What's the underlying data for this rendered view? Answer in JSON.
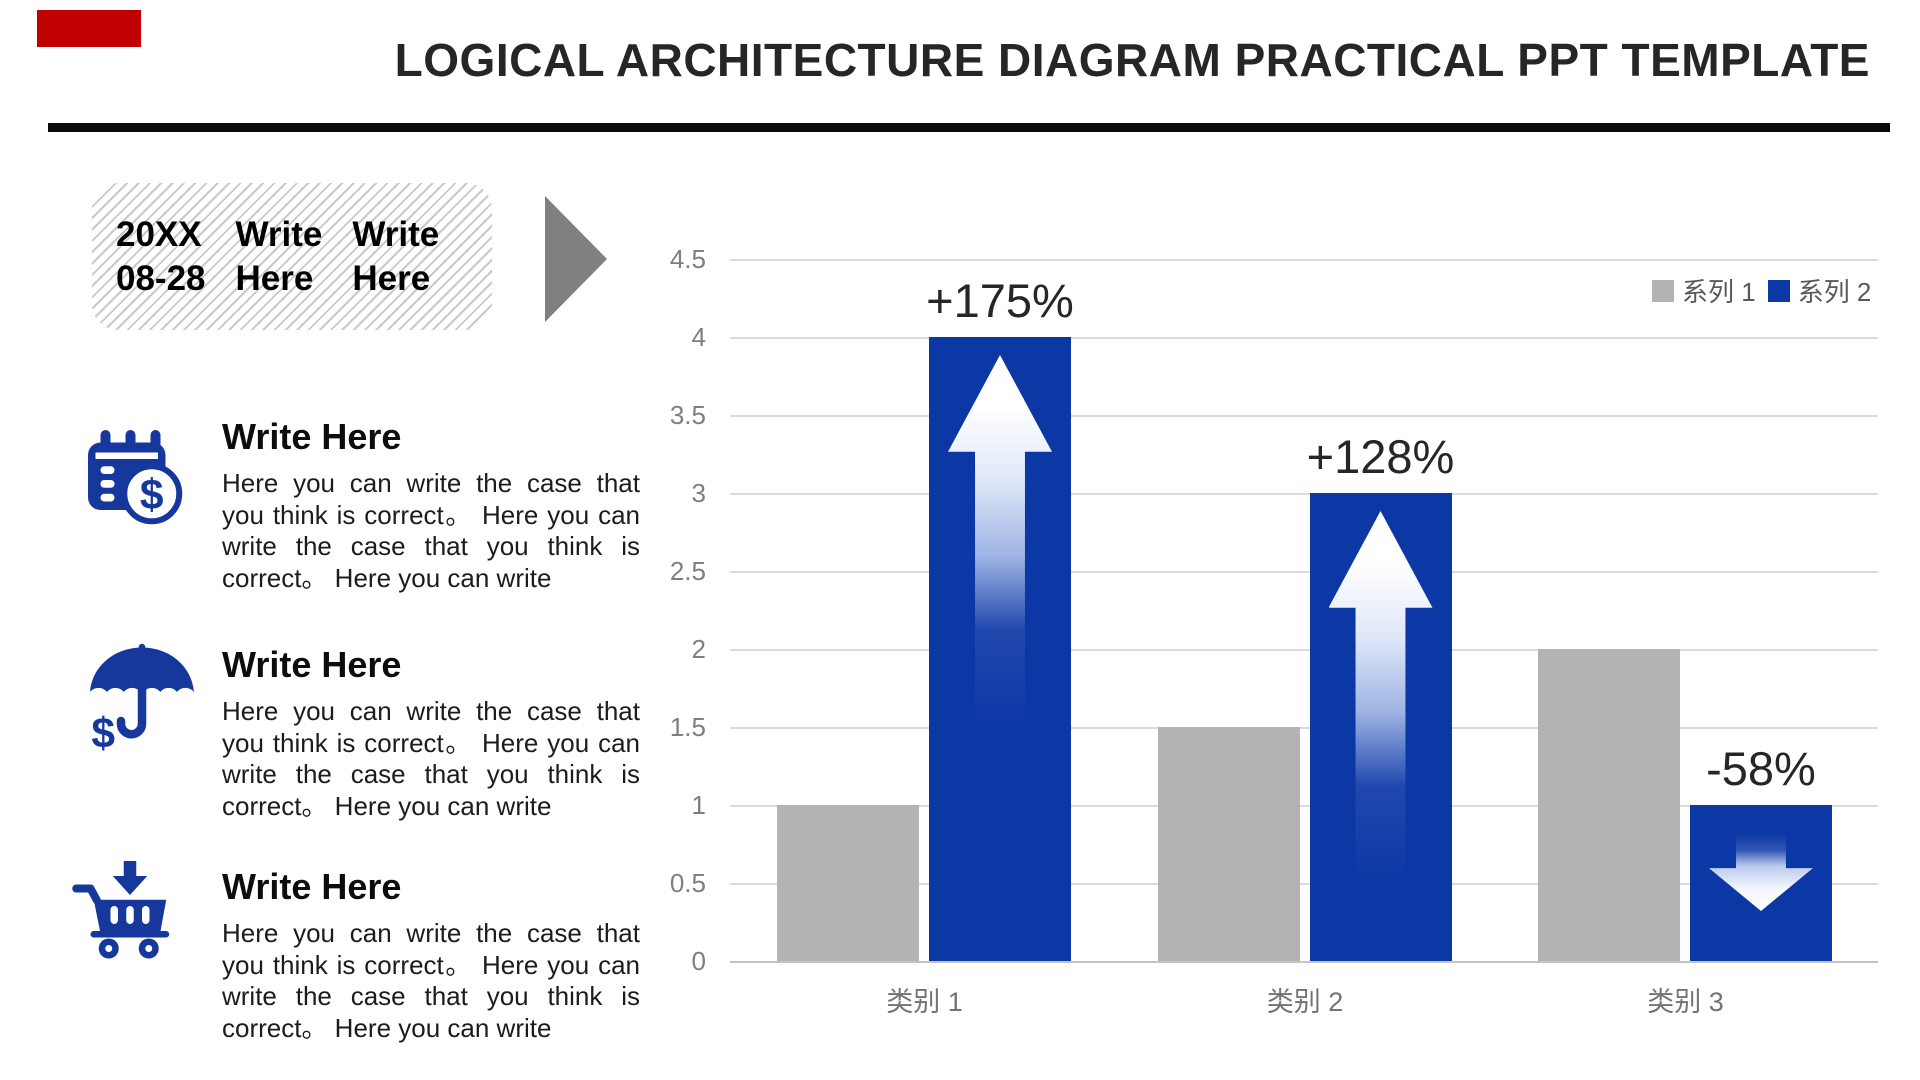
{
  "slide": {
    "title": "LOGICAL ARCHITECTURE DIAGRAM PRACTICAL PPT TEMPLATE",
    "accent_color": "#c00000",
    "icon_color": "#16389c"
  },
  "date_badge": {
    "col1": [
      "20XX",
      "08-28"
    ],
    "col2": [
      "Write",
      "Here"
    ],
    "col3": [
      "Write",
      "Here"
    ]
  },
  "sections": [
    {
      "icon": "calendar-dollar-icon",
      "title": "Write Here",
      "body": "Here you can write the case that you think is correct。 Here you can write the case that you think is correct。 Here you can write"
    },
    {
      "icon": "umbrella-dollar-icon",
      "title": "Write Here",
      "body": "Here you can write the case that you think is correct。 Here you can write the case that you think is correct。 Here you can write"
    },
    {
      "icon": "cart-down-icon",
      "title": "Write Here",
      "body": "Here you can write the case that you think is correct。 Here you can write the case that you think is correct。 Here you can write"
    }
  ],
  "chart_data": {
    "type": "bar",
    "categories": [
      "类别 1",
      "类别 2",
      "类别 3"
    ],
    "series": [
      {
        "name": "系列 1",
        "color": "#b3b3b3",
        "values": [
          1,
          1.5,
          2
        ]
      },
      {
        "name": "系列 2",
        "color": "#0c38a5",
        "values": [
          4,
          3,
          1
        ]
      }
    ],
    "annotations": [
      {
        "label": "+175%",
        "category": "类别 1",
        "direction": "up"
      },
      {
        "label": "+128%",
        "category": "类别 2",
        "direction": "up"
      },
      {
        "label": "-58%",
        "category": "类别 3",
        "direction": "down"
      }
    ],
    "title": "",
    "xlabel": "",
    "ylabel": "",
    "ylim": [
      0,
      4.5
    ],
    "ytick_step": 0.5,
    "yticks": [
      "4.5",
      "4",
      "3.5",
      "3",
      "2.5",
      "2",
      "1.5",
      "1",
      "0.5",
      "0"
    ],
    "grid": true,
    "legend_position": "top-right"
  }
}
